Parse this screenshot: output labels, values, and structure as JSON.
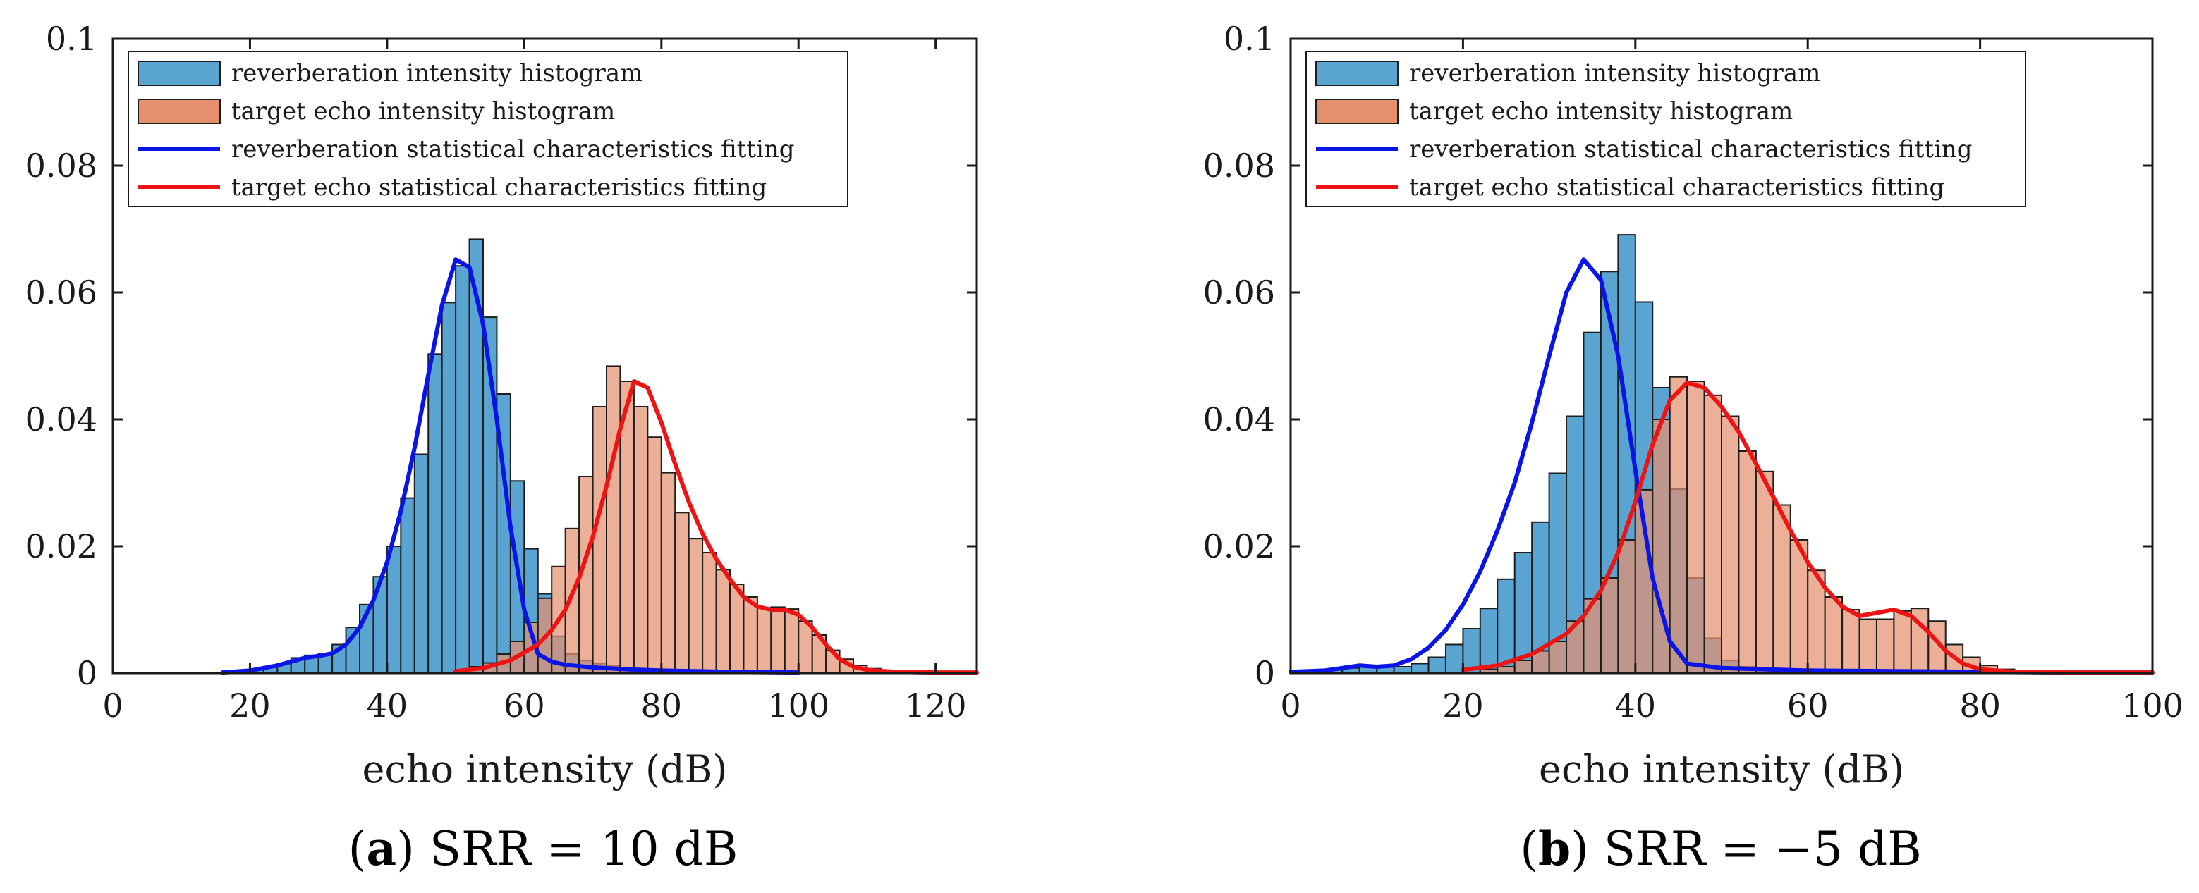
{
  "legend_labels": {
    "reverb_hist": "reverberation intensity histogram",
    "target_hist": "target echo intensity histogram",
    "reverb_fit": "reverberation statistical characteristics fitting",
    "target_fit": "target echo statistical characteristics fitting"
  },
  "colors": {
    "reverb_hist": "#5aa4d2",
    "target_hist": "#e4906f",
    "reverb_fit": "#0a14e6",
    "target_fit": "#ee1414"
  },
  "captions": {
    "a_letter": "a",
    "a_text": "SRR = 10 dB",
    "b_letter": "b",
    "b_text": "SRR = −5 dB"
  },
  "chart_data": [
    {
      "type": "bar",
      "panel": "a",
      "xlabel": "echo intensity (dB)",
      "ylabel": "",
      "xlim": [
        0,
        126
      ],
      "ylim": [
        0,
        0.1
      ],
      "xticks": [
        0,
        20,
        40,
        60,
        80,
        100,
        120
      ],
      "yticks": [
        0,
        0.02,
        0.04,
        0.06,
        0.08,
        0.1
      ],
      "ytick_labels": [
        "0",
        "0.02",
        "0.04",
        "0.06",
        "0.08",
        "0.1"
      ],
      "bin_width": 2,
      "legend_position": "top-left",
      "series": [
        {
          "name": "reverberation intensity histogram",
          "kind": "histogram",
          "start": 16,
          "values": [
            0.0002,
            0.0003,
            0.0005,
            0.0009,
            0.0015,
            0.0024,
            0.0028,
            0.003,
            0.0045,
            0.0072,
            0.0108,
            0.0152,
            0.02,
            0.0276,
            0.0345,
            0.0503,
            0.0584,
            0.0642,
            0.0684,
            0.0561,
            0.044,
            0.0303,
            0.0196,
            0.0125,
            0.0058,
            0.003,
            0.002,
            0.0015,
            0.0011,
            0.0008,
            0.0006,
            0.0005,
            0.0004,
            0.0004,
            0.0003,
            0.0003,
            0.0002,
            0.0002,
            0.0002,
            0.0001,
            0.0001
          ]
        },
        {
          "name": "target echo intensity histogram",
          "kind": "histogram",
          "start": 50,
          "values": [
            0.0005,
            0.001,
            0.0016,
            0.003,
            0.005,
            0.008,
            0.0118,
            0.0168,
            0.0228,
            0.031,
            0.042,
            0.0484,
            0.046,
            0.042,
            0.0372,
            0.0316,
            0.0253,
            0.0212,
            0.019,
            0.0163,
            0.014,
            0.012,
            0.0103,
            0.0104,
            0.0101,
            0.0082,
            0.006,
            0.0036,
            0.0022,
            0.0012,
            0.0007,
            0.0004
          ]
        },
        {
          "name": "reverberation statistical characteristics fitting",
          "kind": "line",
          "x": [
            16,
            20,
            24,
            26,
            28,
            30,
            32,
            34,
            36,
            38,
            40,
            42,
            44,
            46,
            48,
            50,
            52,
            54,
            56,
            58,
            60,
            62,
            64,
            66,
            70,
            75,
            80,
            90,
            100
          ],
          "y": [
            0.0001,
            0.0004,
            0.0012,
            0.0018,
            0.0024,
            0.0027,
            0.0031,
            0.0045,
            0.0072,
            0.0115,
            0.0175,
            0.0255,
            0.0355,
            0.047,
            0.058,
            0.0652,
            0.064,
            0.055,
            0.04,
            0.023,
            0.01,
            0.003,
            0.0018,
            0.0013,
            0.0009,
            0.0006,
            0.0004,
            0.0002,
            0.0001
          ]
        },
        {
          "name": "target echo statistical characteristics fitting",
          "kind": "line",
          "x": [
            50,
            54,
            58,
            62,
            64,
            66,
            68,
            70,
            72,
            74,
            76,
            78,
            80,
            82,
            84,
            86,
            88,
            90,
            92,
            94,
            96,
            98,
            100,
            102,
            104,
            106,
            108,
            110,
            114,
            120,
            126
          ],
          "y": [
            0.0003,
            0.0008,
            0.002,
            0.0045,
            0.0068,
            0.01,
            0.015,
            0.0215,
            0.0295,
            0.0385,
            0.046,
            0.045,
            0.0395,
            0.033,
            0.027,
            0.022,
            0.018,
            0.0148,
            0.012,
            0.0105,
            0.01,
            0.01,
            0.0092,
            0.0072,
            0.0045,
            0.0022,
            0.001,
            0.0005,
            0.0002,
            0.0001,
            0.0001
          ]
        }
      ]
    },
    {
      "type": "bar",
      "panel": "b",
      "xlabel": "echo intensity (dB)",
      "ylabel": "",
      "xlim": [
        0,
        100
      ],
      "ylim": [
        0,
        0.1
      ],
      "xticks": [
        0,
        20,
        40,
        60,
        80,
        100
      ],
      "yticks": [
        0,
        0.02,
        0.04,
        0.06,
        0.08,
        0.1
      ],
      "ytick_labels": [
        "0",
        "0.02",
        "0.04",
        "0.06",
        "0.08",
        "0.1"
      ],
      "bin_width": 2,
      "legend_position": "top-left",
      "series": [
        {
          "name": "reverberation intensity histogram",
          "kind": "histogram",
          "start": 0,
          "values": [
            0.0002,
            0.0003,
            0.0005,
            0.0008,
            0.001,
            0.001,
            0.001,
            0.0015,
            0.0025,
            0.0045,
            0.007,
            0.0102,
            0.0148,
            0.019,
            0.0238,
            0.0315,
            0.0405,
            0.0537,
            0.0633,
            0.0691,
            0.0585,
            0.045,
            0.029,
            0.015,
            0.0055,
            0.002,
            0.001,
            0.0008,
            0.0006,
            0.0005,
            0.0004,
            0.0003,
            0.0003,
            0.0002,
            0.0002,
            0.0001,
            0.0001,
            0.0001
          ]
        },
        {
          "name": "target echo intensity histogram",
          "kind": "histogram",
          "start": 22,
          "values": [
            0.0006,
            0.001,
            0.002,
            0.0035,
            0.005,
            0.0082,
            0.0117,
            0.015,
            0.021,
            0.0289,
            0.04,
            0.0467,
            0.046,
            0.0438,
            0.0405,
            0.035,
            0.0318,
            0.0265,
            0.021,
            0.0162,
            0.012,
            0.01,
            0.0085,
            0.0085,
            0.0098,
            0.0102,
            0.0082,
            0.0045,
            0.0025,
            0.0012,
            0.0006,
            0.0003
          ]
        },
        {
          "name": "reverberation statistical characteristics fitting",
          "kind": "line",
          "x": [
            0,
            4,
            6,
            8,
            10,
            12,
            14,
            16,
            18,
            20,
            22,
            24,
            26,
            28,
            30,
            32,
            34,
            36,
            38,
            40,
            42,
            44,
            46,
            50,
            55,
            60,
            70,
            80,
            90,
            100
          ],
          "y": [
            0.0002,
            0.0004,
            0.0008,
            0.0012,
            0.001,
            0.0012,
            0.0022,
            0.004,
            0.0068,
            0.0108,
            0.016,
            0.0225,
            0.03,
            0.0395,
            0.05,
            0.06,
            0.0652,
            0.062,
            0.05,
            0.032,
            0.015,
            0.005,
            0.0015,
            0.0008,
            0.0006,
            0.0004,
            0.0003,
            0.0002,
            0.0001,
            0.0001
          ]
        },
        {
          "name": "target echo statistical characteristics fitting",
          "kind": "line",
          "x": [
            20,
            24,
            28,
            32,
            34,
            36,
            38,
            40,
            42,
            44,
            46,
            48,
            50,
            52,
            54,
            56,
            58,
            60,
            62,
            64,
            66,
            68,
            70,
            72,
            74,
            76,
            78,
            80,
            84,
            90,
            100
          ],
          "y": [
            0.0005,
            0.0012,
            0.003,
            0.0062,
            0.009,
            0.013,
            0.019,
            0.027,
            0.036,
            0.043,
            0.0458,
            0.045,
            0.042,
            0.038,
            0.033,
            0.0278,
            0.0225,
            0.0175,
            0.0135,
            0.0105,
            0.009,
            0.0095,
            0.01,
            0.009,
            0.0065,
            0.0035,
            0.0015,
            0.0006,
            0.0002,
            0.0001,
            0.0001
          ]
        }
      ]
    }
  ]
}
